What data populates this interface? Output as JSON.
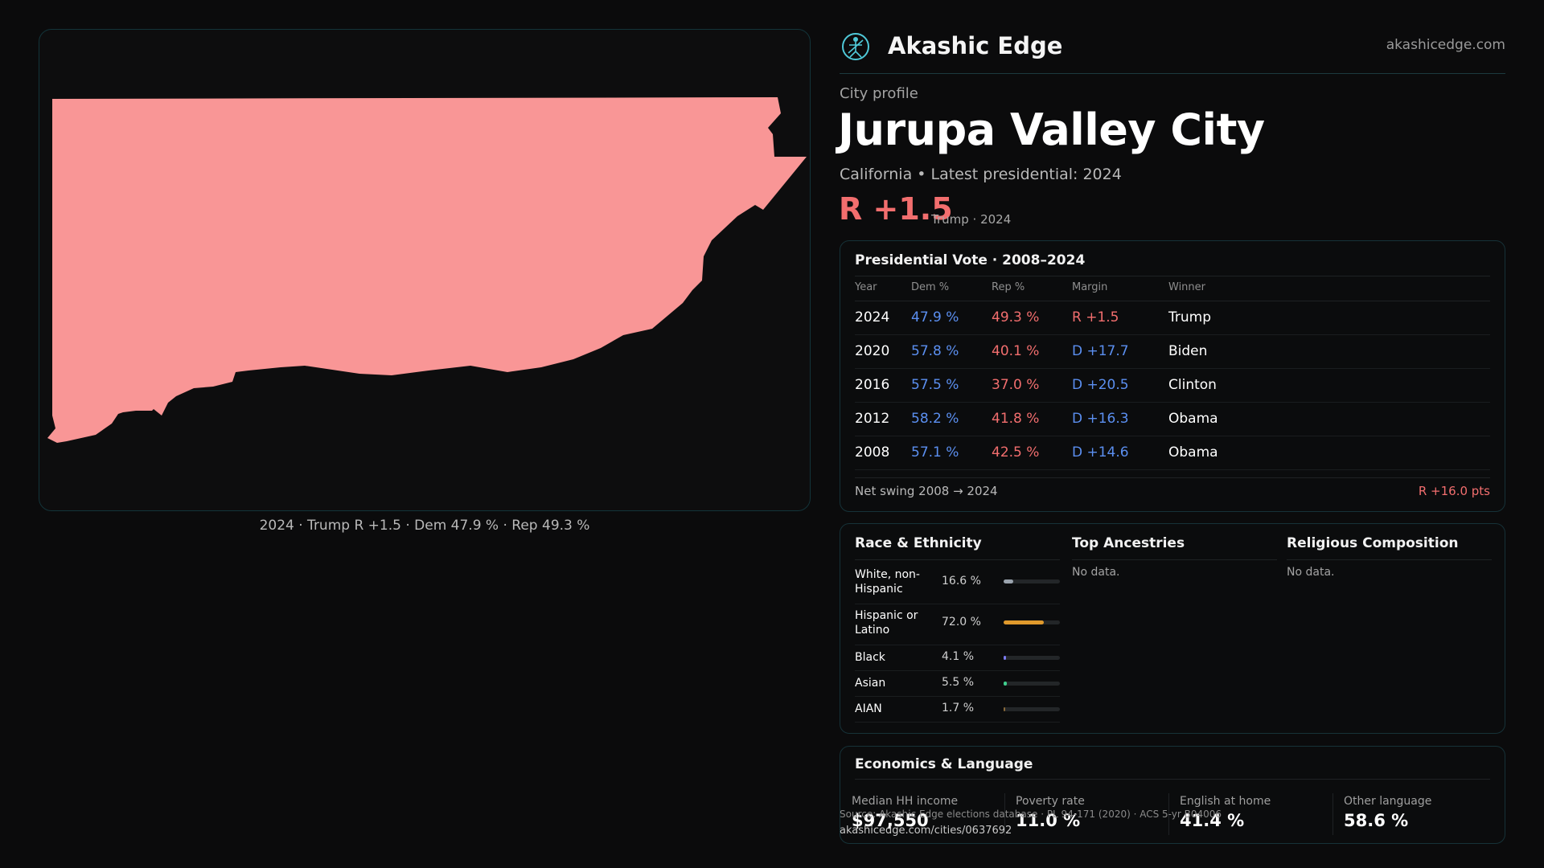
{
  "brand": {
    "name": "Akashic Edge",
    "url": "akashicedge.com",
    "logo_icon": "circular-figure-logo-icon"
  },
  "map": {
    "caption": "2024 · Trump R +1.5 · Dem 47.9 % · Rep 49.3 %",
    "fill_color": "#f99696"
  },
  "profile": {
    "kicker": "City profile",
    "title": "Jurupa Valley City",
    "subtitle": "California • Latest presidential: 2024",
    "margin": "R +1.5",
    "margin_note": "Trump · 2024"
  },
  "vote": {
    "title": "Presidential Vote · 2008–2024",
    "headers": {
      "year": "Year",
      "dem": "Dem %",
      "rep": "Rep %",
      "margin": "Margin",
      "winner": "Winner"
    },
    "rows": [
      {
        "year": "2024",
        "dem": "47.9 %",
        "rep": "49.3 %",
        "margin": "R +1.5",
        "winner": "Trump"
      },
      {
        "year": "2020",
        "dem": "57.8 %",
        "rep": "40.1 %",
        "margin": "D +17.7",
        "winner": "Biden"
      },
      {
        "year": "2016",
        "dem": "57.5 %",
        "rep": "37.0 %",
        "margin": "D +20.5",
        "winner": "Clinton"
      },
      {
        "year": "2012",
        "dem": "58.2 %",
        "rep": "41.8 %",
        "margin": "D +16.3",
        "winner": "Obama"
      },
      {
        "year": "2008",
        "dem": "57.1 %",
        "rep": "42.5 %",
        "margin": "D +14.6",
        "winner": "Obama"
      }
    ],
    "swing_label": "Net swing 2008 → 2024",
    "swing_value": "R +16.0 pts"
  },
  "demographics": {
    "race_title": "Race & Ethnicity",
    "race": [
      {
        "label": "White, non-Hispanic",
        "value": "16.6 %",
        "fraction": 0.166,
        "color": "#9aa3ad"
      },
      {
        "label": "Hispanic or Latino",
        "value": "72.0 %",
        "fraction": 0.72,
        "color": "#e09a2c"
      },
      {
        "label": "Black",
        "value": "4.1 %",
        "fraction": 0.041,
        "color": "#7b7bf0"
      },
      {
        "label": "Asian",
        "value": "5.5 %",
        "fraction": 0.055,
        "color": "#3fcf8e"
      },
      {
        "label": "AIAN",
        "value": "1.7 %",
        "fraction": 0.017,
        "color": "#8a6a3a"
      }
    ],
    "ancestries_title": "Top Ancestries",
    "ancestries_empty": "No data.",
    "religion_title": "Religious Composition",
    "religion_empty": "No data."
  },
  "economics": {
    "title": "Economics & Language",
    "cells": [
      {
        "label": "Median HH income",
        "value": "$97,550"
      },
      {
        "label": "Poverty rate",
        "value": "11.0 %"
      },
      {
        "label": "English at home",
        "value": "41.4 %"
      },
      {
        "label": "Other language",
        "value": "58.6 %"
      }
    ]
  },
  "footer": {
    "source": "Source: Akashic Edge elections database · PL 94-171 (2020) · ACS 5-yr B04006",
    "url": "akashicedge.com/cities/0637692"
  }
}
